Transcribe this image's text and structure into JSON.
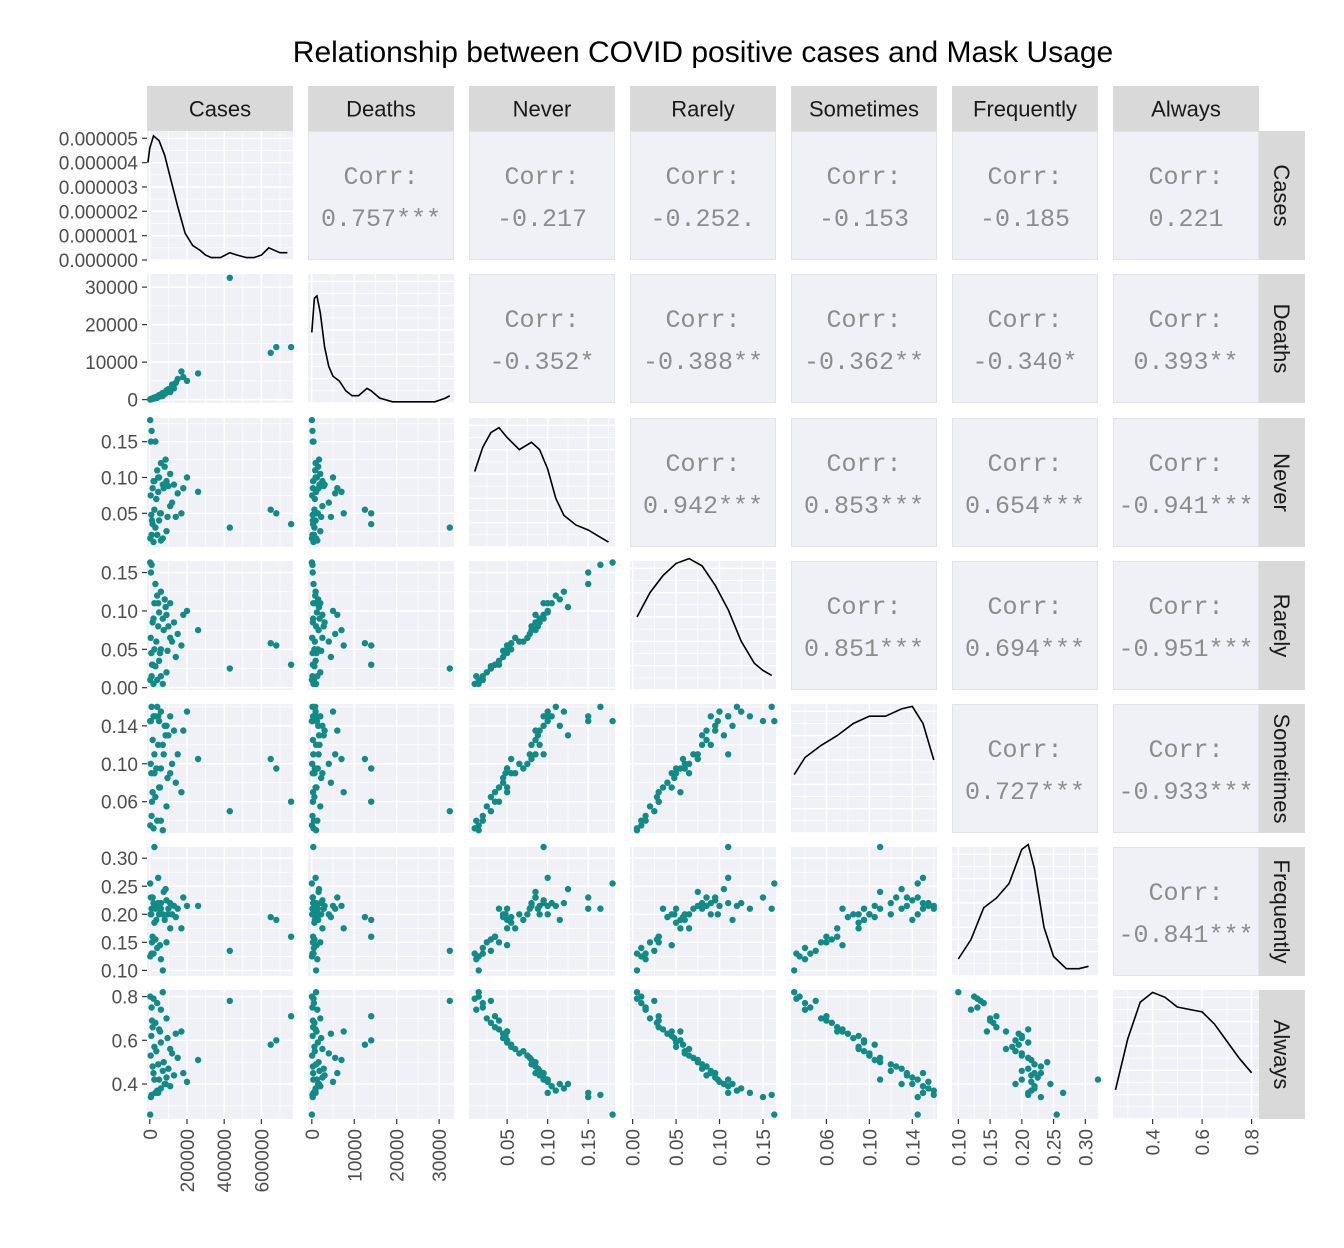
{
  "title": "Relationship between COVID positive cases and Mask Usage",
  "chart_data": {
    "type": "scatter-matrix",
    "variables": [
      "Cases",
      "Deaths",
      "Never",
      "Rarely",
      "Sometimes",
      "Frequently",
      "Always"
    ],
    "corr_label": "Corr:",
    "correlations": [
      {
        "row": 0,
        "col": 1,
        "value": "0.757***"
      },
      {
        "row": 0,
        "col": 2,
        "value": "-0.217"
      },
      {
        "row": 0,
        "col": 3,
        "value": "-0.252."
      },
      {
        "row": 0,
        "col": 4,
        "value": "-0.153"
      },
      {
        "row": 0,
        "col": 5,
        "value": "-0.185"
      },
      {
        "row": 0,
        "col": 6,
        "value": "0.221"
      },
      {
        "row": 1,
        "col": 2,
        "value": "-0.352*"
      },
      {
        "row": 1,
        "col": 3,
        "value": "-0.388**"
      },
      {
        "row": 1,
        "col": 4,
        "value": "-0.362**"
      },
      {
        "row": 1,
        "col": 5,
        "value": "-0.340*"
      },
      {
        "row": 1,
        "col": 6,
        "value": "0.393**"
      },
      {
        "row": 2,
        "col": 3,
        "value": "0.942***"
      },
      {
        "row": 2,
        "col": 4,
        "value": "0.853***"
      },
      {
        "row": 2,
        "col": 5,
        "value": "0.654***"
      },
      {
        "row": 2,
        "col": 6,
        "value": "-0.941***"
      },
      {
        "row": 3,
        "col": 4,
        "value": "0.851***"
      },
      {
        "row": 3,
        "col": 5,
        "value": "0.694***"
      },
      {
        "row": 3,
        "col": 6,
        "value": "-0.951***"
      },
      {
        "row": 4,
        "col": 5,
        "value": "0.727***"
      },
      {
        "row": 4,
        "col": 6,
        "value": "-0.933***"
      },
      {
        "row": 5,
        "col": 6,
        "value": "-0.841***"
      }
    ],
    "axes": {
      "Cases": {
        "range": [
          -15000,
          770000
        ],
        "ticks": [
          0,
          200000,
          400000,
          600000
        ],
        "tick_labels": [
          "0",
          "200000",
          "400000",
          "600000"
        ]
      },
      "Deaths": {
        "range": [
          -900,
          33500
        ],
        "ticks": [
          0,
          10000,
          20000,
          30000
        ],
        "tick_labels": [
          "0",
          "10000",
          "20000",
          "30000"
        ]
      },
      "Never": {
        "range": [
          0.003,
          0.183
        ],
        "ticks": [
          0.05,
          0.1,
          0.15
        ],
        "tick_labels": [
          "0.05",
          "0.10",
          "0.15"
        ]
      },
      "Rarely": {
        "range": [
          -0.003,
          0.165
        ],
        "ticks": [
          0.0,
          0.05,
          0.1,
          0.15
        ],
        "tick_labels": [
          "0.00",
          "0.05",
          "0.10",
          "0.15"
        ]
      },
      "Sometimes": {
        "range": [
          0.027,
          0.163
        ],
        "ticks": [
          0.06,
          0.1,
          0.14
        ],
        "tick_labels": [
          "0.06",
          "0.10",
          "0.14"
        ]
      },
      "Frequently": {
        "range": [
          0.09,
          0.32
        ],
        "ticks": [
          0.1,
          0.15,
          0.2,
          0.25,
          0.3
        ],
        "tick_labels": [
          "0.10",
          "0.15",
          "0.20",
          "0.25",
          "0.30"
        ]
      },
      "Always": {
        "range": [
          0.24,
          0.83
        ],
        "ticks": [
          0.4,
          0.6,
          0.8
        ],
        "tick_labels": [
          "0.4",
          "0.6",
          "0.8"
        ]
      }
    },
    "density_y_axis": {
      "range": [
        0,
        5.3e-06
      ],
      "ticks": [
        0,
        1e-06,
        2e-06,
        3e-06,
        4e-06,
        5e-06
      ],
      "tick_labels": [
        "0.000000",
        "0.000001",
        "0.000002",
        "0.000003",
        "0.000004",
        "0.000005"
      ]
    },
    "density_curves": {
      "Cases": [
        [
          -10000,
          4e-06
        ],
        [
          0,
          4.6e-06
        ],
        [
          20000,
          5.1e-06
        ],
        [
          50000,
          4.9e-06
        ],
        [
          80000,
          4.3e-06
        ],
        [
          110000,
          3.4e-06
        ],
        [
          150000,
          2.2e-06
        ],
        [
          190000,
          1.1e-06
        ],
        [
          230000,
          6e-07
        ],
        [
          270000,
          4e-07
        ],
        [
          300000,
          2e-07
        ],
        [
          330000,
          1e-07
        ],
        [
          380000,
          1e-07
        ],
        [
          430000,
          3e-07
        ],
        [
          470000,
          2e-07
        ],
        [
          520000,
          1e-07
        ],
        [
          560000,
          1e-07
        ],
        [
          600000,
          2e-07
        ],
        [
          640000,
          5e-07
        ],
        [
          670000,
          4e-07
        ],
        [
          700000,
          3e-07
        ],
        [
          740000,
          3e-07
        ]
      ],
      "Deaths": [
        [
          0,
          2.9e-06
        ],
        [
          600,
          4.3e-06
        ],
        [
          1200,
          4.4e-06
        ],
        [
          2000,
          3.7e-06
        ],
        [
          3000,
          2.3e-06
        ],
        [
          4000,
          1.5e-06
        ],
        [
          5000,
          1.1e-06
        ],
        [
          6500,
          9e-07
        ],
        [
          8000,
          5e-07
        ],
        [
          9500,
          3e-07
        ],
        [
          11000,
          3e-07
        ],
        [
          13000,
          6e-07
        ],
        [
          14000,
          5e-07
        ],
        [
          16000,
          2e-07
        ],
        [
          19000,
          5e-08
        ],
        [
          24000,
          5e-08
        ],
        [
          29000,
          5e-08
        ],
        [
          31500,
          2e-07
        ],
        [
          32500,
          3e-07
        ]
      ],
      "Never": [
        [
          0.01,
          3.1e-06
        ],
        [
          0.02,
          4.1e-06
        ],
        [
          0.03,
          4.7e-06
        ],
        [
          0.04,
          4.9e-06
        ],
        [
          0.05,
          4.5e-06
        ],
        [
          0.065,
          4e-06
        ],
        [
          0.08,
          4.3e-06
        ],
        [
          0.09,
          4e-06
        ],
        [
          0.1,
          3.2e-06
        ],
        [
          0.11,
          2e-06
        ],
        [
          0.12,
          1.3e-06
        ],
        [
          0.135,
          9e-07
        ],
        [
          0.15,
          7e-07
        ],
        [
          0.165,
          4e-07
        ],
        [
          0.175,
          2e-07
        ]
      ],
      "Rarely": [
        [
          0.005,
          3e-06
        ],
        [
          0.02,
          4e-06
        ],
        [
          0.035,
          4.7e-06
        ],
        [
          0.05,
          5.2e-06
        ],
        [
          0.065,
          5.4e-06
        ],
        [
          0.08,
          5.1e-06
        ],
        [
          0.095,
          4.3e-06
        ],
        [
          0.11,
          3.3e-06
        ],
        [
          0.125,
          2e-06
        ],
        [
          0.14,
          1.1e-06
        ],
        [
          0.15,
          8e-07
        ],
        [
          0.16,
          6e-07
        ]
      ],
      "Sometimes": [
        [
          0.03,
          2.4e-06
        ],
        [
          0.04,
          3.1e-06
        ],
        [
          0.055,
          3.6e-06
        ],
        [
          0.07,
          4e-06
        ],
        [
          0.085,
          4.5e-06
        ],
        [
          0.1,
          4.8e-06
        ],
        [
          0.115,
          4.8e-06
        ],
        [
          0.13,
          5.1e-06
        ],
        [
          0.14,
          5.2e-06
        ],
        [
          0.15,
          4.5e-06
        ],
        [
          0.16,
          3e-06
        ]
      ],
      "Frequently": [
        [
          0.1,
          7e-07
        ],
        [
          0.12,
          1.5e-06
        ],
        [
          0.14,
          2.8e-06
        ],
        [
          0.16,
          3.2e-06
        ],
        [
          0.18,
          3.8e-06
        ],
        [
          0.2,
          5.2e-06
        ],
        [
          0.21,
          5.4e-06
        ],
        [
          0.22,
          4.4e-06
        ],
        [
          0.235,
          2e-06
        ],
        [
          0.25,
          8e-07
        ],
        [
          0.27,
          3e-07
        ],
        [
          0.29,
          3e-07
        ],
        [
          0.305,
          4e-07
        ]
      ],
      "Always": [
        [
          0.25,
          1.2e-06
        ],
        [
          0.3,
          3.3e-06
        ],
        [
          0.35,
          4.8e-06
        ],
        [
          0.4,
          5.2e-06
        ],
        [
          0.45,
          5e-06
        ],
        [
          0.5,
          4.6e-06
        ],
        [
          0.55,
          4.5e-06
        ],
        [
          0.6,
          4.4e-06
        ],
        [
          0.65,
          3.9e-06
        ],
        [
          0.7,
          3.2e-06
        ],
        [
          0.75,
          2.5e-06
        ],
        [
          0.8,
          1.9e-06
        ]
      ]
    },
    "points": [
      {
        "Cases": 2000,
        "Deaths": 30,
        "Never": 0.18,
        "Rarely": 0.163,
        "Sometimes": 0.145,
        "Frequently": 0.255,
        "Always": 0.26
      },
      {
        "Cases": 10000,
        "Deaths": 150,
        "Never": 0.165,
        "Rarely": 0.16,
        "Sometimes": 0.16,
        "Frequently": 0.21,
        "Always": 0.35
      },
      {
        "Cases": 6000,
        "Deaths": 200,
        "Never": 0.15,
        "Rarely": 0.15,
        "Sometimes": 0.145,
        "Frequently": 0.23,
        "Always": 0.34
      },
      {
        "Cases": 30000,
        "Deaths": 400,
        "Never": 0.15,
        "Rarely": 0.135,
        "Sometimes": 0.15,
        "Frequently": 0.21,
        "Always": 0.36
      },
      {
        "Cases": 60000,
        "Deaths": 900,
        "Never": 0.12,
        "Rarely": 0.125,
        "Sometimes": 0.155,
        "Frequently": 0.22,
        "Always": 0.38
      },
      {
        "Cases": 80000,
        "Deaths": 1500,
        "Never": 0.115,
        "Rarely": 0.115,
        "Sometimes": 0.14,
        "Frequently": 0.19,
        "Always": 0.4
      },
      {
        "Cases": 40000,
        "Deaths": 800,
        "Never": 0.11,
        "Rarely": 0.12,
        "Sometimes": 0.16,
        "Frequently": 0.215,
        "Always": 0.37
      },
      {
        "Cases": 110000,
        "Deaths": 2000,
        "Never": 0.105,
        "Rarely": 0.11,
        "Sometimes": 0.15,
        "Frequently": 0.22,
        "Always": 0.39
      },
      {
        "Cases": 200000,
        "Deaths": 5000,
        "Never": 0.1,
        "Rarely": 0.1,
        "Sometimes": 0.155,
        "Frequently": 0.215,
        "Always": 0.41
      },
      {
        "Cases": 50000,
        "Deaths": 1200,
        "Never": 0.1,
        "Rarely": 0.098,
        "Sometimes": 0.145,
        "Frequently": 0.2,
        "Always": 0.42
      },
      {
        "Cases": 90000,
        "Deaths": 2500,
        "Never": 0.095,
        "Rarely": 0.095,
        "Sometimes": 0.14,
        "Frequently": 0.225,
        "Always": 0.43
      },
      {
        "Cases": 20000,
        "Deaths": 300,
        "Never": 0.095,
        "Rarely": 0.09,
        "Sometimes": 0.15,
        "Frequently": 0.22,
        "Always": 0.45
      },
      {
        "Cases": 70000,
        "Deaths": 1800,
        "Never": 0.09,
        "Rarely": 0.09,
        "Sometimes": 0.12,
        "Frequently": 0.2,
        "Always": 0.46
      },
      {
        "Cases": 130000,
        "Deaths": 3000,
        "Never": 0.09,
        "Rarely": 0.085,
        "Sometimes": 0.135,
        "Frequently": 0.215,
        "Always": 0.44
      },
      {
        "Cases": 100000,
        "Deaths": 2800,
        "Never": 0.088,
        "Rarely": 0.08,
        "Sometimes": 0.13,
        "Frequently": 0.21,
        "Always": 0.47
      },
      {
        "Cases": 15000,
        "Deaths": 250,
        "Never": 0.085,
        "Rarely": 0.085,
        "Sometimes": 0.125,
        "Frequently": 0.23,
        "Always": 0.48
      },
      {
        "Cases": 75000,
        "Deaths": 1600,
        "Never": 0.085,
        "Rarely": 0.075,
        "Sometimes": 0.11,
        "Frequently": 0.24,
        "Always": 0.5
      },
      {
        "Cases": 45000,
        "Deaths": 1000,
        "Never": 0.08,
        "Rarely": 0.08,
        "Sometimes": 0.12,
        "Frequently": 0.22,
        "Always": 0.49
      },
      {
        "Cases": 150000,
        "Deaths": 5500,
        "Never": 0.078,
        "Rarely": 0.07,
        "Sometimes": 0.11,
        "Frequently": 0.21,
        "Always": 0.52
      },
      {
        "Cases": 260000,
        "Deaths": 7000,
        "Never": 0.08,
        "Rarely": 0.075,
        "Sometimes": 0.105,
        "Frequently": 0.215,
        "Always": 0.51
      },
      {
        "Cases": 5000,
        "Deaths": 100,
        "Never": 0.075,
        "Rarely": 0.065,
        "Sometimes": 0.1,
        "Frequently": 0.2,
        "Always": 0.53
      },
      {
        "Cases": 35000,
        "Deaths": 700,
        "Never": 0.07,
        "Rarely": 0.06,
        "Sometimes": 0.095,
        "Frequently": 0.19,
        "Always": 0.55
      },
      {
        "Cases": 120000,
        "Deaths": 4000,
        "Never": 0.065,
        "Rarely": 0.06,
        "Sometimes": 0.1,
        "Frequently": 0.2,
        "Always": 0.54
      },
      {
        "Cases": 650000,
        "Deaths": 12500,
        "Never": 0.055,
        "Rarely": 0.058,
        "Sometimes": 0.105,
        "Frequently": 0.195,
        "Always": 0.58
      },
      {
        "Cases": 680000,
        "Deaths": 14000,
        "Never": 0.05,
        "Rarely": 0.055,
        "Sometimes": 0.095,
        "Frequently": 0.19,
        "Always": 0.6
      },
      {
        "Cases": 25000,
        "Deaths": 600,
        "Never": 0.055,
        "Rarely": 0.05,
        "Sometimes": 0.09,
        "Frequently": 0.185,
        "Always": 0.57
      },
      {
        "Cases": 60000,
        "Deaths": 1400,
        "Never": 0.05,
        "Rarely": 0.05,
        "Sometimes": 0.095,
        "Frequently": 0.21,
        "Always": 0.59
      },
      {
        "Cases": 8000,
        "Deaths": 200,
        "Never": 0.048,
        "Rarely": 0.045,
        "Sometimes": 0.09,
        "Frequently": 0.2,
        "Always": 0.62
      },
      {
        "Cases": 95000,
        "Deaths": 2200,
        "Never": 0.045,
        "Rarely": 0.048,
        "Sometimes": 0.085,
        "Frequently": 0.2,
        "Always": 0.61
      },
      {
        "Cases": 140000,
        "Deaths": 4500,
        "Never": 0.045,
        "Rarely": 0.04,
        "Sometimes": 0.08,
        "Frequently": 0.195,
        "Always": 0.63
      },
      {
        "Cases": 50000,
        "Deaths": 900,
        "Never": 0.04,
        "Rarely": 0.035,
        "Sometimes": 0.075,
        "Frequently": 0.21,
        "Always": 0.65
      },
      {
        "Cases": 430000,
        "Deaths": 32500,
        "Never": 0.03,
        "Rarely": 0.025,
        "Sometimes": 0.05,
        "Frequently": 0.135,
        "Always": 0.78
      },
      {
        "Cases": 760000,
        "Deaths": 14000,
        "Never": 0.035,
        "Rarely": 0.03,
        "Sometimes": 0.06,
        "Frequently": 0.16,
        "Always": 0.71
      },
      {
        "Cases": 15000,
        "Deaths": 300,
        "Never": 0.035,
        "Rarely": 0.03,
        "Sometimes": 0.07,
        "Frequently": 0.16,
        "Always": 0.66
      },
      {
        "Cases": 30000,
        "Deaths": 600,
        "Never": 0.03,
        "Rarely": 0.028,
        "Sometimes": 0.065,
        "Frequently": 0.155,
        "Always": 0.68
      },
      {
        "Cases": 170000,
        "Deaths": 7500,
        "Never": 0.05,
        "Rarely": 0.055,
        "Sometimes": 0.07,
        "Frequently": 0.175,
        "Always": 0.64
      },
      {
        "Cases": 90000,
        "Deaths": 2000,
        "Never": 0.025,
        "Rarely": 0.02,
        "Sometimes": 0.055,
        "Frequently": 0.15,
        "Always": 0.7
      },
      {
        "Cases": 10000,
        "Deaths": 150,
        "Never": 0.02,
        "Rarely": 0.015,
        "Sometimes": 0.045,
        "Frequently": 0.13,
        "Always": 0.75
      },
      {
        "Cases": 40000,
        "Deaths": 500,
        "Never": 0.02,
        "Rarely": 0.01,
        "Sometimes": 0.04,
        "Frequently": 0.14,
        "Always": 0.77
      },
      {
        "Cases": 3000,
        "Deaths": 50,
        "Never": 0.015,
        "Rarely": 0.01,
        "Sometimes": 0.035,
        "Frequently": 0.125,
        "Always": 0.8
      },
      {
        "Cases": 70000,
        "Deaths": 1000,
        "Never": 0.015,
        "Rarely": 0.005,
        "Sometimes": 0.03,
        "Frequently": 0.1,
        "Always": 0.82
      },
      {
        "Cases": 20000,
        "Deaths": 400,
        "Never": 0.01,
        "Rarely": 0.005,
        "Sometimes": 0.032,
        "Frequently": 0.13,
        "Always": 0.79
      },
      {
        "Cases": 110000,
        "Deaths": 2500,
        "Never": 0.06,
        "Rarely": 0.065,
        "Sometimes": 0.09,
        "Frequently": 0.175,
        "Always": 0.56
      },
      {
        "Cases": 60000,
        "Deaths": 1300,
        "Never": 0.012,
        "Rarely": 0.015,
        "Sometimes": 0.04,
        "Frequently": 0.12,
        "Always": 0.74
      },
      {
        "Cases": 25000,
        "Deaths": 350,
        "Never": 0.095,
        "Rarely": 0.11,
        "Sometimes": 0.11,
        "Frequently": 0.32,
        "Always": 0.42
      },
      {
        "Cases": 85000,
        "Deaths": 1700,
        "Never": 0.125,
        "Rarely": 0.105,
        "Sometimes": 0.13,
        "Frequently": 0.245,
        "Always": 0.4
      },
      {
        "Cases": 45000,
        "Deaths": 900,
        "Never": 0.1,
        "Rarely": 0.11,
        "Sometimes": 0.15,
        "Frequently": 0.265,
        "Always": 0.36
      },
      {
        "Cases": 180000,
        "Deaths": 6000,
        "Never": 0.085,
        "Rarely": 0.095,
        "Sometimes": 0.135,
        "Frequently": 0.23,
        "Always": 0.45
      },
      {
        "Cases": 55000,
        "Deaths": 1100,
        "Never": 0.05,
        "Rarely": 0.045,
        "Sometimes": 0.075,
        "Frequently": 0.145,
        "Always": 0.64
      },
      {
        "Cases": 12000,
        "Deaths": 250,
        "Never": 0.04,
        "Rarely": 0.03,
        "Sometimes": 0.06,
        "Frequently": 0.15,
        "Always": 0.69
      }
    ]
  }
}
